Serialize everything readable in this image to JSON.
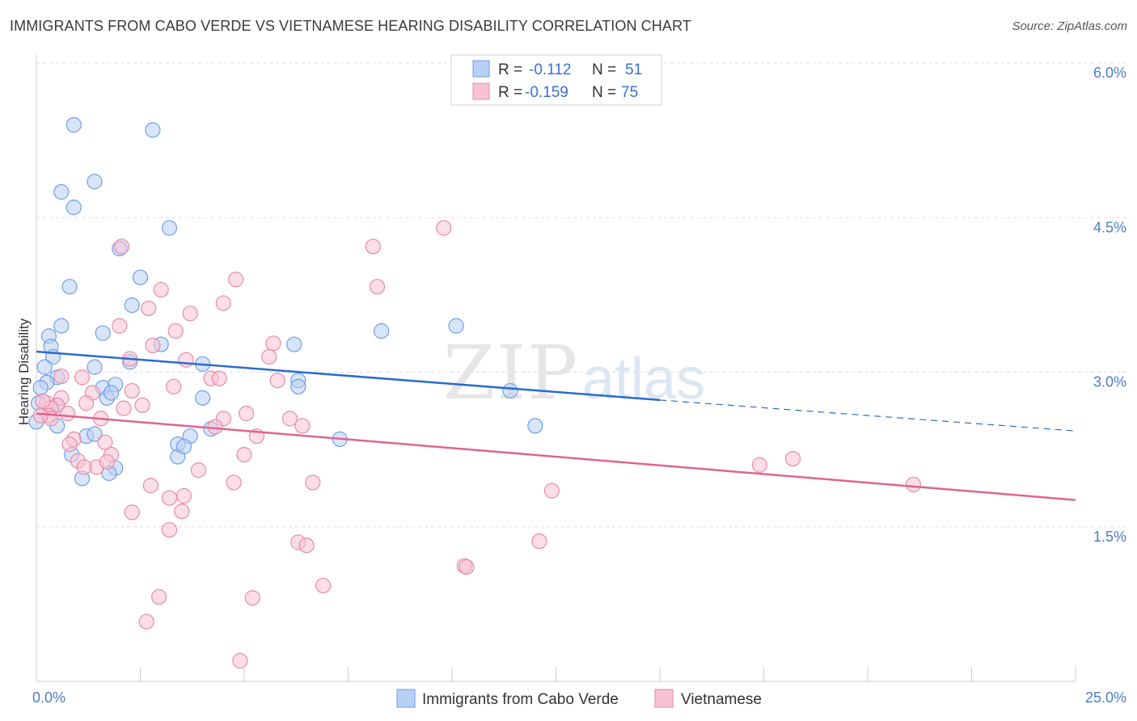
{
  "header": {
    "title": "IMMIGRANTS FROM CABO VERDE VS VIETNAMESE HEARING DISABILITY CORRELATION CHART",
    "source": "Source: ZipAtlas.com"
  },
  "watermark": {
    "zip": "ZIP",
    "atlas": "atlas"
  },
  "chart_data": {
    "type": "scatter",
    "ylabel": "Hearing Disability",
    "xlim": [
      0,
      25
    ],
    "ylim": [
      0,
      6.0
    ],
    "x_tick_labels": [
      {
        "value": 0,
        "label": "0.0%"
      },
      {
        "value": 25,
        "label": "25.0%"
      }
    ],
    "y_tick_labels": [
      {
        "value": 1.5,
        "label": "1.5%"
      },
      {
        "value": 3.0,
        "label": "3.0%"
      },
      {
        "value": 4.5,
        "label": "4.5%"
      },
      {
        "value": 6.0,
        "label": "6.0%"
      }
    ],
    "grid": "horizontal dashed",
    "legend_position": "top-center",
    "legend": [
      {
        "r_label": "R =",
        "r_value": "-0.112",
        "n_label": "N =",
        "n_value": "51"
      },
      {
        "r_label": "R =",
        "r_value": "-0.159",
        "n_label": "N =",
        "n_value": "75"
      }
    ],
    "series": [
      {
        "name": "Immigrants from Cabo Verde",
        "color": "#6f9ee8",
        "fill": "#b8d0f3",
        "trend": {
          "x0": 0,
          "y0": 3.2,
          "x1": 15,
          "y1": 2.73,
          "dash_to_x": 25,
          "dash_to_y": 2.43,
          "color": "#2a6bd0"
        },
        "points": [
          [
            0.9,
            5.4
          ],
          [
            2.8,
            5.35
          ],
          [
            1.4,
            4.85
          ],
          [
            0.6,
            4.75
          ],
          [
            0.9,
            4.6
          ],
          [
            3.2,
            4.4
          ],
          [
            2.0,
            4.2
          ],
          [
            0.8,
            3.83
          ],
          [
            2.5,
            3.92
          ],
          [
            2.3,
            3.65
          ],
          [
            0.6,
            3.45
          ],
          [
            1.6,
            3.38
          ],
          [
            0.3,
            3.35
          ],
          [
            0.35,
            3.25
          ],
          [
            0.4,
            3.15
          ],
          [
            3.0,
            3.27
          ],
          [
            6.2,
            3.27
          ],
          [
            0.2,
            3.05
          ],
          [
            1.4,
            3.05
          ],
          [
            2.25,
            3.1
          ],
          [
            4.0,
            3.08
          ],
          [
            0.5,
            2.95
          ],
          [
            0.25,
            2.9
          ],
          [
            1.6,
            2.85
          ],
          [
            1.9,
            2.88
          ],
          [
            6.3,
            2.92
          ],
          [
            6.3,
            2.86
          ],
          [
            1.7,
            2.75
          ],
          [
            4.0,
            2.75
          ],
          [
            0.5,
            2.68
          ],
          [
            1.8,
            2.8
          ],
          [
            0.0,
            2.52
          ],
          [
            0.5,
            2.48
          ],
          [
            3.7,
            2.38
          ],
          [
            4.2,
            2.45
          ],
          [
            3.4,
            2.3
          ],
          [
            1.2,
            2.38
          ],
          [
            1.4,
            2.4
          ],
          [
            7.3,
            2.35
          ],
          [
            0.85,
            2.2
          ],
          [
            3.4,
            2.18
          ],
          [
            1.9,
            2.07
          ],
          [
            1.75,
            2.02
          ],
          [
            1.1,
            1.97
          ],
          [
            8.3,
            3.4
          ],
          [
            10.1,
            3.45
          ],
          [
            11.4,
            2.82
          ],
          [
            12.0,
            2.48
          ],
          [
            0.1,
            2.85
          ],
          [
            0.05,
            2.7
          ],
          [
            3.55,
            2.28
          ]
        ]
      },
      {
        "name": "Vietnamese",
        "color": "#e88aa8",
        "fill": "#f7c3d3",
        "trend": {
          "x0": 0,
          "y0": 2.6,
          "x1": 25,
          "y1": 1.76,
          "color": "#e0648f"
        },
        "points": [
          [
            9.8,
            4.4
          ],
          [
            2.05,
            4.22
          ],
          [
            8.1,
            4.22
          ],
          [
            4.8,
            3.9
          ],
          [
            8.2,
            3.83
          ],
          [
            3.0,
            3.8
          ],
          [
            4.5,
            3.67
          ],
          [
            2.7,
            3.62
          ],
          [
            3.7,
            3.57
          ],
          [
            2.0,
            3.45
          ],
          [
            3.35,
            3.4
          ],
          [
            5.7,
            3.28
          ],
          [
            2.8,
            3.26
          ],
          [
            5.6,
            3.15
          ],
          [
            2.25,
            3.13
          ],
          [
            3.6,
            3.12
          ],
          [
            0.6,
            2.96
          ],
          [
            1.1,
            2.95
          ],
          [
            4.2,
            2.94
          ],
          [
            4.4,
            2.94
          ],
          [
            5.8,
            2.92
          ],
          [
            3.3,
            2.86
          ],
          [
            2.3,
            2.82
          ],
          [
            1.35,
            2.8
          ],
          [
            0.6,
            2.75
          ],
          [
            0.5,
            2.68
          ],
          [
            1.2,
            2.7
          ],
          [
            0.25,
            2.7
          ],
          [
            0.35,
            2.65
          ],
          [
            2.55,
            2.68
          ],
          [
            2.1,
            2.65
          ],
          [
            0.75,
            2.6
          ],
          [
            5.05,
            2.6
          ],
          [
            0.3,
            2.58
          ],
          [
            1.55,
            2.55
          ],
          [
            0.35,
            2.55
          ],
          [
            6.1,
            2.55
          ],
          [
            4.5,
            2.55
          ],
          [
            6.4,
            2.48
          ],
          [
            4.3,
            2.47
          ],
          [
            0.1,
            2.58
          ],
          [
            5.3,
            2.38
          ],
          [
            0.9,
            2.35
          ],
          [
            1.65,
            2.32
          ],
          [
            0.8,
            2.3
          ],
          [
            1.8,
            2.2
          ],
          [
            5.0,
            2.2
          ],
          [
            1.0,
            2.14
          ],
          [
            1.45,
            2.08
          ],
          [
            1.15,
            2.08
          ],
          [
            1.7,
            2.13
          ],
          [
            3.9,
            2.05
          ],
          [
            17.4,
            2.1
          ],
          [
            18.2,
            2.16
          ],
          [
            2.75,
            1.9
          ],
          [
            4.75,
            1.93
          ],
          [
            6.65,
            1.93
          ],
          [
            3.55,
            1.8
          ],
          [
            3.2,
            1.78
          ],
          [
            12.4,
            1.85
          ],
          [
            21.1,
            1.91
          ],
          [
            2.3,
            1.64
          ],
          [
            3.5,
            1.65
          ],
          [
            3.2,
            1.47
          ],
          [
            6.3,
            1.35
          ],
          [
            6.5,
            1.32
          ],
          [
            12.1,
            1.36
          ],
          [
            10.3,
            1.12
          ],
          [
            10.35,
            1.11
          ],
          [
            6.9,
            0.93
          ],
          [
            2.95,
            0.82
          ],
          [
            5.2,
            0.81
          ],
          [
            2.65,
            0.58
          ],
          [
            4.9,
            0.2
          ],
          [
            0.15,
            2.72
          ]
        ]
      }
    ]
  }
}
